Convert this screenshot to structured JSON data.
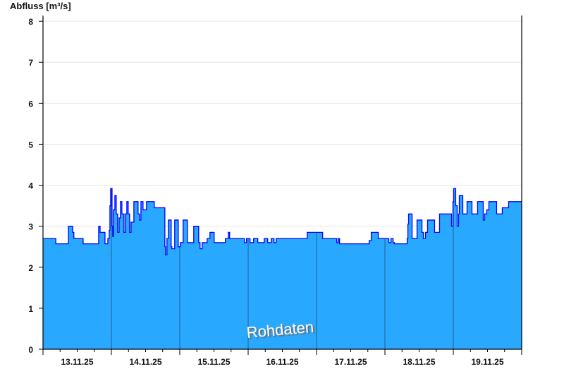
{
  "chart_data": {
    "type": "area",
    "title": "",
    "ylabel": "Abfluss [m³/s]",
    "xlabel": "",
    "watermark": "Rohdaten",
    "ylim": [
      0,
      8.14
    ],
    "xlim": [
      "13.11.25 00:00",
      "20.11.25 00:00"
    ],
    "yticks": [
      0,
      1,
      2,
      3,
      4,
      5,
      6,
      7,
      8
    ],
    "xtick_labels": [
      "13.11.25",
      "14.11.25",
      "15.11.25",
      "16.11.25",
      "17.11.25",
      "18.11.25",
      "19.11.25"
    ],
    "grid": "horizontal",
    "colors": {
      "fill": "#29a8ff",
      "line": "#0000ff",
      "day_separator": "#1f5f8b",
      "grid": "#e6e6e6"
    },
    "points": [
      [
        "13.11.25 00:00",
        2.7
      ],
      [
        "13.11.25 04:10",
        2.7
      ],
      [
        "13.11.25 04:30",
        2.57
      ],
      [
        "13.11.25 08:10",
        2.57
      ],
      [
        "13.11.25 08:55",
        3.0
      ],
      [
        "13.11.25 09:55",
        3.0
      ],
      [
        "13.11.25 10:25",
        2.85
      ],
      [
        "13.11.25 10:50",
        2.7
      ],
      [
        "13.11.25 13:50",
        2.7
      ],
      [
        "13.11.25 14:05",
        2.57
      ],
      [
        "13.11.25 18:47",
        2.57
      ],
      [
        "13.11.25 19:32",
        3.0
      ],
      [
        "13.11.25 20:02",
        2.85
      ],
      [
        "13.11.25 21:00",
        2.85
      ],
      [
        "13.11.25 21:45",
        2.57
      ],
      [
        "13.11.25 22:15",
        2.57
      ],
      [
        "13.11.25 22:45",
        2.7
      ],
      [
        "13.11.25 23:14",
        2.9
      ],
      [
        "13.11.25 23:29",
        3.5
      ],
      [
        "13.11.25 23:44",
        3.92
      ],
      [
        "14.11.25 00:14",
        3.0
      ],
      [
        "14.11.25 00:28",
        2.75
      ],
      [
        "14.11.25 00:43",
        3.4
      ],
      [
        "14.11.25 01:13",
        3.75
      ],
      [
        "14.11.25 01:42",
        3.3
      ],
      [
        "14.11.25 02:12",
        2.85
      ],
      [
        "14.11.25 02:42",
        3.2
      ],
      [
        "14.11.25 03:11",
        3.6
      ],
      [
        "14.11.25 03:41",
        3.3
      ],
      [
        "14.11.25 04:25",
        2.85
      ],
      [
        "14.11.25 04:55",
        3.3
      ],
      [
        "14.11.25 05:25",
        3.6
      ],
      [
        "14.11.25 05:54",
        3.3
      ],
      [
        "14.11.25 06:24",
        2.85
      ],
      [
        "14.11.25 06:54",
        3.1
      ],
      [
        "14.11.25 07:53",
        3.6
      ],
      [
        "14.11.25 09:22",
        3.3
      ],
      [
        "14.11.25 09:52",
        3.15
      ],
      [
        "14.11.25 10:22",
        3.6
      ],
      [
        "14.11.25 11:06",
        3.4
      ],
      [
        "14.11.25 12:20",
        3.6
      ],
      [
        "14.11.25 14:34",
        3.6
      ],
      [
        "14.11.25 15:03",
        3.45
      ],
      [
        "14.11.25 18:16",
        3.45
      ],
      [
        "14.11.25 18:46",
        2.5
      ],
      [
        "14.11.25 19:01",
        2.3
      ],
      [
        "14.11.25 19:30",
        2.7
      ],
      [
        "14.11.25 20:00",
        3.15
      ],
      [
        "14.11.25 20:59",
        2.5
      ],
      [
        "14.11.25 21:14",
        2.45
      ],
      [
        "14.11.25 22:13",
        3.15
      ],
      [
        "14.11.25 23:28",
        2.5
      ],
      [
        "15.11.25 00:12",
        2.6
      ],
      [
        "15.11.25 01:11",
        3.15
      ],
      [
        "15.11.25 02:40",
        2.6
      ],
      [
        "15.11.25 04:09",
        2.6
      ],
      [
        "15.11.25 04:54",
        3.0
      ],
      [
        "15.11.25 06:38",
        2.6
      ],
      [
        "15.11.25 07:07",
        2.45
      ],
      [
        "15.11.25 07:52",
        2.6
      ],
      [
        "15.11.25 09:36",
        2.7
      ],
      [
        "15.11.25 10:35",
        2.85
      ],
      [
        "15.11.25 12:04",
        2.6
      ],
      [
        "15.11.25 15:02",
        2.6
      ],
      [
        "15.11.25 16:01",
        2.7
      ],
      [
        "15.11.25 17:01",
        2.85
      ],
      [
        "15.11.25 17:30",
        2.7
      ],
      [
        "15.11.25 21:57",
        2.7
      ],
      [
        "15.11.25 22:42",
        2.6
      ],
      [
        "15.11.25 23:26",
        2.7
      ],
      [
        "16.11.25 00:40",
        2.6
      ],
      [
        "16.11.25 01:54",
        2.7
      ],
      [
        "16.11.25 03:23",
        2.6
      ],
      [
        "16.11.25 04:53",
        2.6
      ],
      [
        "16.11.25 05:37",
        2.7
      ],
      [
        "16.11.25 06:51",
        2.6
      ],
      [
        "16.11.25 08:05",
        2.7
      ],
      [
        "16.11.25 09:04",
        2.6
      ],
      [
        "16.11.25 09:49",
        2.7
      ],
      [
        "16.11.25 20:42",
        2.85
      ],
      [
        "17.11.25 01:53",
        2.85
      ],
      [
        "17.11.25 02:08",
        2.7
      ],
      [
        "17.11.25 06:50",
        2.7
      ],
      [
        "17.11.25 07:05",
        2.6
      ],
      [
        "17.11.25 07:35",
        2.7
      ],
      [
        "17.11.25 08:04",
        2.57
      ],
      [
        "17.11.25 17:58",
        2.57
      ],
      [
        "17.11.25 18:27",
        2.65
      ],
      [
        "17.11.25 19:12",
        2.85
      ],
      [
        "17.11.25 21:10",
        2.85
      ],
      [
        "17.11.25 21:40",
        2.7
      ],
      [
        "18.11.25 01:08",
        2.7
      ],
      [
        "18.11.25 01:22",
        2.6
      ],
      [
        "18.11.25 02:07",
        2.7
      ],
      [
        "18.11.25 02:52",
        2.6
      ],
      [
        "18.11.25 03:21",
        2.57
      ],
      [
        "18.11.25 07:33",
        2.57
      ],
      [
        "18.11.25 07:48",
        2.7
      ],
      [
        "18.11.25 08:03",
        3.05
      ],
      [
        "18.11.25 08:18",
        3.3
      ],
      [
        "18.11.25 08:47",
        3.3
      ],
      [
        "18.11.25 09:32",
        2.7
      ],
      [
        "18.11.25 10:46",
        2.7
      ],
      [
        "18.11.25 11:16",
        3.15
      ],
      [
        "18.11.25 12:30",
        3.15
      ],
      [
        "18.11.25 13:00",
        2.85
      ],
      [
        "18.11.25 13:29",
        2.7
      ],
      [
        "18.11.25 14:14",
        2.85
      ],
      [
        "18.11.25 14:58",
        3.15
      ],
      [
        "18.11.25 16:42",
        3.15
      ],
      [
        "18.11.25 17:26",
        2.85
      ],
      [
        "18.11.25 18:26",
        2.85
      ],
      [
        "18.11.25 19:10",
        3.3
      ],
      [
        "18.11.25 22:53",
        3.3
      ],
      [
        "18.11.25 23:23",
        3.0
      ],
      [
        "18.11.25 23:52",
        3.6
      ],
      [
        "19.11.25 00:07",
        3.92
      ],
      [
        "19.11.25 00:37",
        3.92
      ],
      [
        "19.11.25 00:51",
        3.5
      ],
      [
        "19.11.25 01:21",
        3.0
      ],
      [
        "19.11.25 01:51",
        3.3
      ],
      [
        "19.11.25 02:06",
        3.75
      ],
      [
        "19.11.25 02:50",
        3.75
      ],
      [
        "19.11.25 03:20",
        3.3
      ],
      [
        "19.11.25 04:19",
        3.3
      ],
      [
        "19.11.25 04:49",
        3.6
      ],
      [
        "19.11.25 06:03",
        3.6
      ],
      [
        "19.11.25 06:33",
        3.3
      ],
      [
        "19.11.25 08:02",
        3.3
      ],
      [
        "19.11.25 08:31",
        3.6
      ],
      [
        "19.11.25 09:45",
        3.6
      ],
      [
        "19.11.25 10:30",
        3.15
      ],
      [
        "19.11.25 11:00",
        3.3
      ],
      [
        "19.11.25 11:44",
        3.4
      ],
      [
        "19.11.25 12:29",
        3.6
      ],
      [
        "19.11.25 14:27",
        3.6
      ],
      [
        "19.11.25 15:12",
        3.3
      ],
      [
        "19.11.25 16:41",
        3.3
      ],
      [
        "19.11.25 17:11",
        3.45
      ],
      [
        "19.11.25 18:55",
        3.45
      ],
      [
        "19.11.25 19:24",
        3.6
      ],
      [
        "20.11.25 00:00",
        3.6
      ]
    ]
  }
}
